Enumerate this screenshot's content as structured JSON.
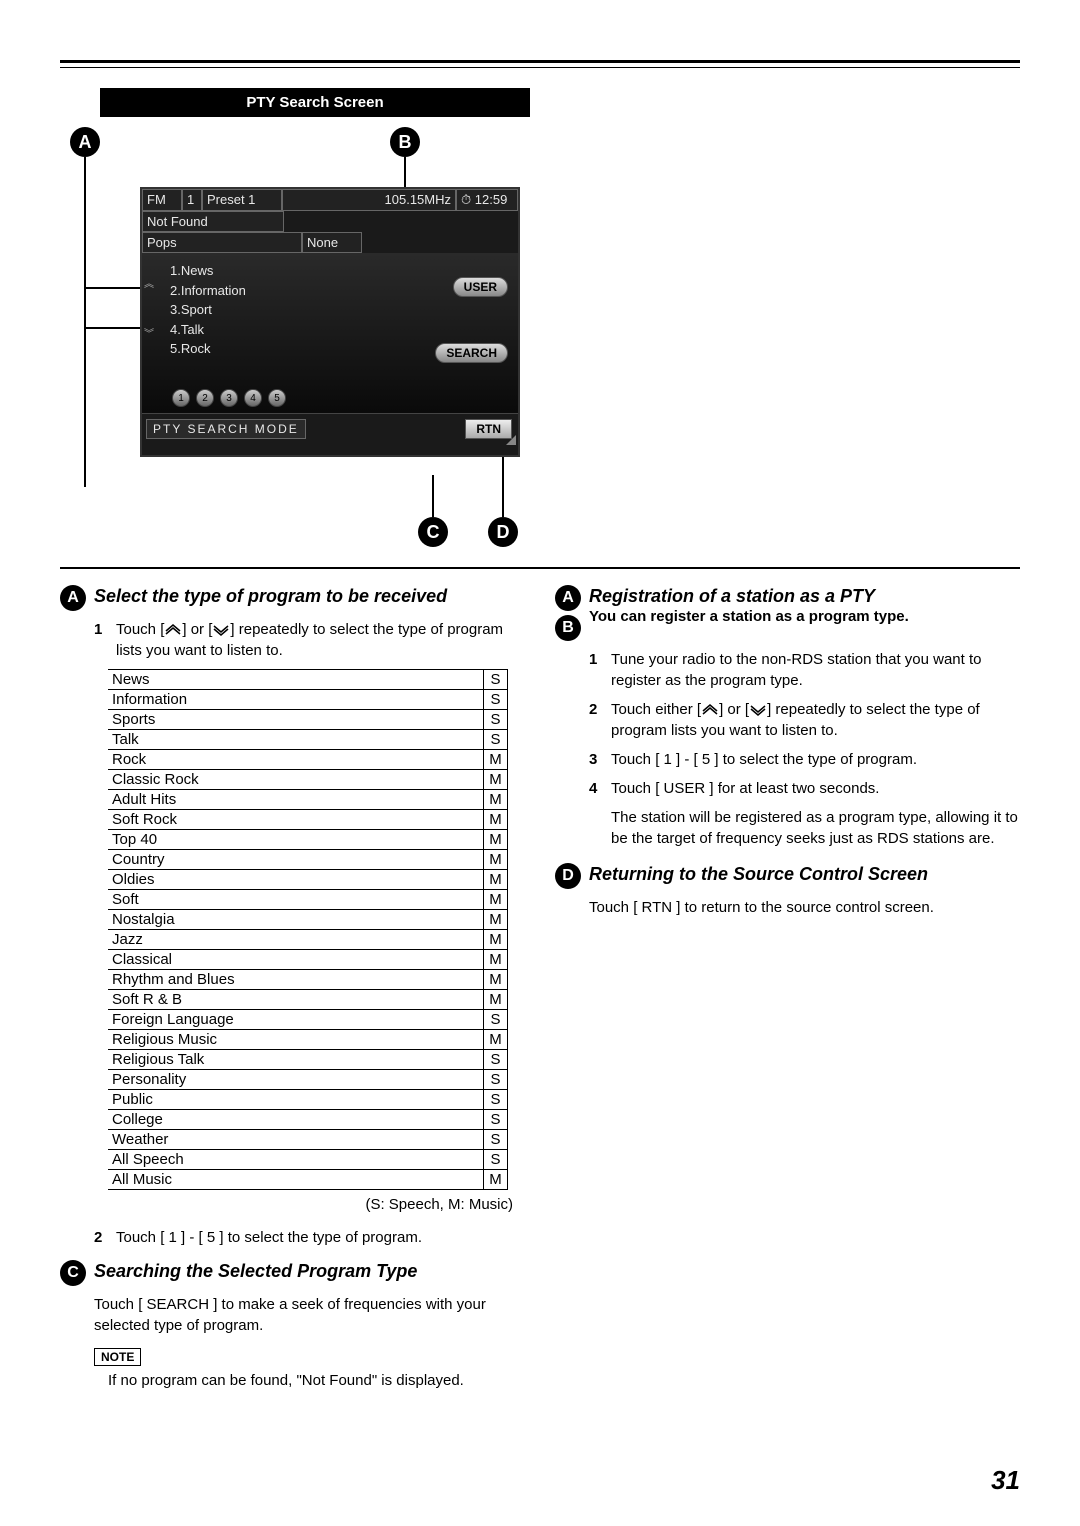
{
  "page_number": "31",
  "screen_title": "PTY Search Screen",
  "markers": {
    "A": "A",
    "B": "B",
    "C": "C",
    "D": "D"
  },
  "device": {
    "band": "FM",
    "band_num": "1",
    "preset": "Preset 1",
    "freq": "105.15MHz",
    "clock_icon": "⏱",
    "time": "12:59",
    "status": "Not Found",
    "category": "Pops",
    "none": "None",
    "list": [
      "1.News",
      "2.Information",
      "3.Sport",
      "4.Talk",
      "5.Rock"
    ],
    "user_btn": "USER",
    "search_btn": "SEARCH",
    "nums": [
      "1",
      "2",
      "3",
      "4",
      "5"
    ],
    "mode": "PTY SEARCH MODE",
    "rtn": "RTN"
  },
  "sectionA": {
    "title": "Select the type of program to be received",
    "step1_pre": "Touch  [",
    "step1_mid": "] or [",
    "step1_post": "] repeatedly to select the type of program lists you want to listen to.",
    "table_rows": [
      [
        "News",
        "S"
      ],
      [
        "Information",
        "S"
      ],
      [
        "Sports",
        "S"
      ],
      [
        "Talk",
        "S"
      ],
      [
        "Rock",
        "M"
      ],
      [
        "Classic Rock",
        "M"
      ],
      [
        "Adult Hits",
        "M"
      ],
      [
        "Soft Rock",
        "M"
      ],
      [
        "Top 40",
        "M"
      ],
      [
        "Country",
        "M"
      ],
      [
        "Oldies",
        "M"
      ],
      [
        "Soft",
        "M"
      ],
      [
        "Nostalgia",
        "M"
      ],
      [
        "Jazz",
        "M"
      ],
      [
        "Classical",
        "M"
      ],
      [
        "Rhythm and Blues",
        "M"
      ],
      [
        "Soft R & B",
        "M"
      ],
      [
        "Foreign Language",
        "S"
      ],
      [
        "Religious Music",
        "M"
      ],
      [
        "Religious Talk",
        "S"
      ],
      [
        "Personality",
        "S"
      ],
      [
        "Public",
        "S"
      ],
      [
        "College",
        "S"
      ],
      [
        "Weather",
        "S"
      ],
      [
        "All Speech",
        "S"
      ],
      [
        "All Music",
        "M"
      ]
    ],
    "legend": "(S: Speech, M: Music)",
    "step2": "Touch [ 1 ] - [ 5 ] to select the type of program."
  },
  "sectionC": {
    "title": "Searching the Selected Program Type",
    "text": "Touch [ SEARCH ] to make a seek of frequencies with your selected type of program.",
    "note_label": "NOTE",
    "note_text": "If no program can be found, \"Not Found\" is displayed."
  },
  "sectionAB": {
    "title": "Registration of a station as a PTY",
    "sub": "You can register a station as a program type.",
    "step1": "Tune your radio to the non-RDS station that you want to register as the program type.",
    "step2_pre": "Touch either [",
    "step2_mid": "] or [",
    "step2_post": "] repeatedly to select the type of program lists you want to listen to.",
    "step3": "Touch [ 1 ] - [ 5 ] to select the type of program.",
    "step4": "Touch [ USER ] for at least two seconds.",
    "step4_after": "The station will be registered as a program type, allowing it to be the target of frequency seeks just as RDS stations are."
  },
  "sectionD": {
    "title": "Returning to the Source Control Screen",
    "text": "Touch [ RTN ] to return to the source control screen."
  }
}
